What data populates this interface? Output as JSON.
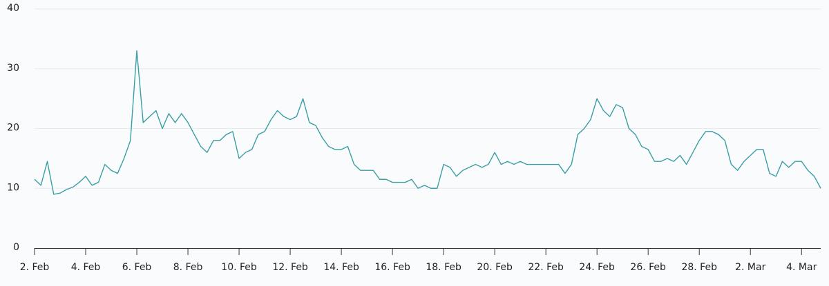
{
  "chart_data": {
    "type": "line",
    "color": "#3a9ea5",
    "categories": [
      "2. Feb",
      null,
      null,
      null,
      null,
      null,
      null,
      null,
      "4. Feb",
      null,
      null,
      null,
      null,
      null,
      null,
      null,
      "6. Feb",
      null,
      null,
      null,
      null,
      null,
      null,
      null,
      "8. Feb",
      null,
      null,
      null,
      null,
      null,
      null,
      null,
      "10. Feb",
      null,
      null,
      null,
      null,
      null,
      null,
      null,
      "12. Feb",
      null,
      null,
      null,
      null,
      null,
      null,
      null,
      "14. Feb",
      null,
      null,
      null,
      null,
      null,
      null,
      null,
      "16. Feb",
      null,
      null,
      null,
      null,
      null,
      null,
      null,
      "18. Feb",
      null,
      null,
      null,
      null,
      null,
      null,
      null,
      "20. Feb",
      null,
      null,
      null,
      null,
      null,
      null,
      null,
      "22. Feb",
      null,
      null,
      null,
      null,
      null,
      null,
      null,
      "24. Feb",
      null,
      null,
      null,
      null,
      null,
      null,
      null,
      "26. Feb",
      null,
      null,
      null,
      null,
      null,
      null,
      null,
      "28. Feb",
      null,
      null,
      null,
      null,
      null,
      null,
      null,
      "2. Mar",
      null,
      null,
      null,
      null,
      null,
      null,
      null,
      "4. Mar",
      null,
      null,
      null
    ],
    "values": [
      11.5,
      10.5,
      14.5,
      9,
      9.2,
      9.8,
      10.2,
      11,
      12,
      10.5,
      11,
      14,
      13,
      12.5,
      15,
      18,
      33,
      21,
      22,
      23,
      20,
      22.5,
      21,
      22.5,
      21,
      19,
      17,
      16,
      18,
      18,
      19,
      19.5,
      15,
      16,
      16.5,
      19,
      19.5,
      21.5,
      23,
      22,
      21.5,
      22,
      25,
      21,
      20.5,
      18.5,
      17,
      16.5,
      16.5,
      17,
      14,
      13,
      13,
      13,
      11.5,
      11.5,
      11,
      11,
      11,
      11.5,
      10,
      10.5,
      10,
      10,
      14,
      13.5,
      12,
      13,
      13.5,
      14,
      13.5,
      14,
      16,
      14,
      14.5,
      14,
      14.5,
      14,
      14,
      14,
      14,
      14,
      14,
      12.5,
      14,
      19,
      20,
      21.5,
      25,
      23,
      22,
      24,
      23.5,
      20,
      19,
      17,
      16.5,
      14.5,
      14.5,
      15,
      14.5,
      15.5,
      14,
      16,
      18,
      19.5,
      19.5,
      19,
      18,
      14,
      13,
      14.5,
      15.5,
      16.5,
      16.5,
      12.5,
      12,
      14.5,
      13.5,
      14.5,
      14.5,
      13,
      12,
      10
    ],
    "ylim": [
      0,
      40
    ],
    "yticks": [
      0,
      10,
      20,
      30,
      40
    ],
    "grid": true
  }
}
